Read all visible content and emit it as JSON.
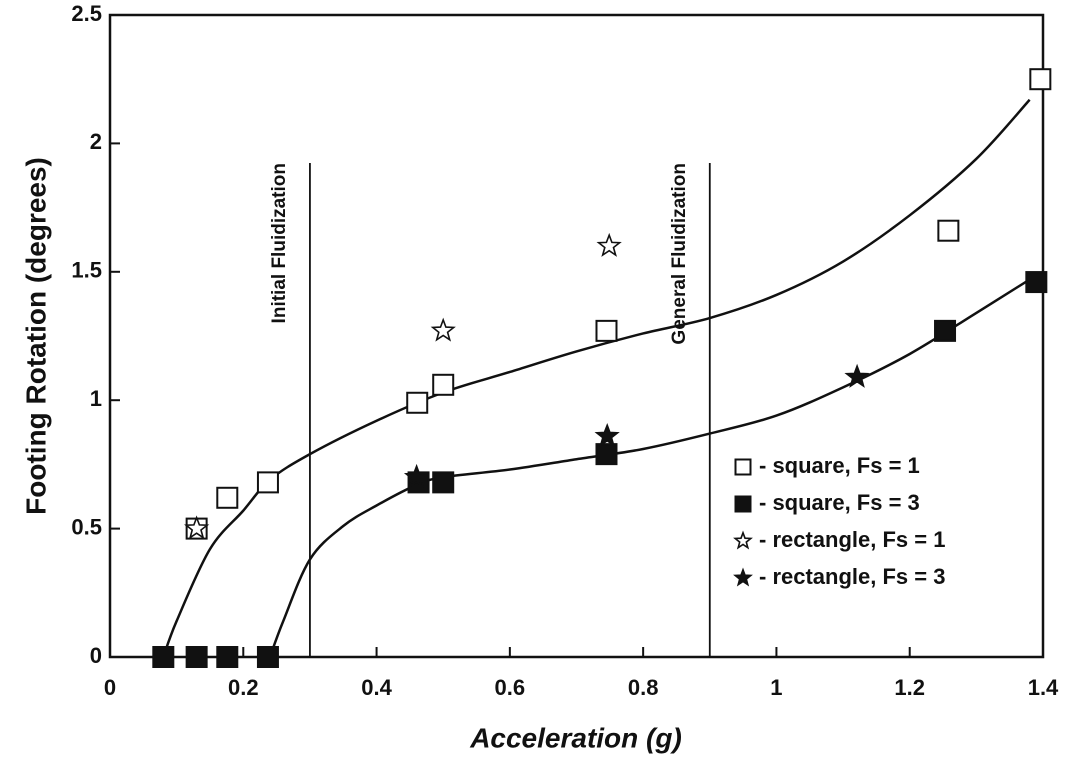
{
  "chart_data": {
    "type": "scatter",
    "x_label": "Acceleration (g)",
    "y_label": "Footing Rotation (degrees)",
    "xlim": [
      0,
      1.4
    ],
    "ylim": [
      0,
      2.5
    ],
    "xticks": [
      0,
      0.2,
      0.4,
      0.6,
      0.8,
      1,
      1.2,
      1.4
    ],
    "yticks": [
      0,
      0.5,
      1,
      1.5,
      2,
      2.5
    ],
    "legend": "lower right",
    "series": [
      {
        "name": "- square, Fs = 1",
        "marker": "square",
        "filled": false,
        "color": "#111111",
        "x": [
          0.13,
          0.176,
          0.237,
          0.461,
          0.5,
          0.745,
          1.258,
          1.396
        ],
        "values": [
          0.5,
          0.62,
          0.68,
          0.99,
          1.06,
          1.27,
          1.66,
          2.25
        ]
      },
      {
        "name": "- square, Fs = 3",
        "marker": "square",
        "filled": true,
        "color": "#111111",
        "x": [
          0.08,
          0.13,
          0.176,
          0.237,
          0.463,
          0.5,
          0.745,
          1.253,
          1.39
        ],
        "values": [
          0,
          0,
          0,
          0,
          0.68,
          0.68,
          0.79,
          1.27,
          1.46
        ]
      },
      {
        "name": "- rectangle, Fs = 1",
        "marker": "star",
        "filled": false,
        "color": "#111111",
        "x": [
          0.13,
          0.5,
          0.749
        ],
        "values": [
          0.5,
          1.27,
          1.6
        ]
      },
      {
        "name": "- rectangle, Fs = 3",
        "marker": "star",
        "filled": true,
        "color": "#111111",
        "x": [
          0.46,
          0.746,
          1.121
        ],
        "values": [
          0.7,
          0.86,
          1.09
        ]
      }
    ],
    "curves": [
      {
        "color": "#111111",
        "x": [
          0.08,
          0.1,
          0.15,
          0.2,
          0.24,
          0.3,
          0.4,
          0.5,
          0.6,
          0.7,
          0.8,
          0.9,
          1.0,
          1.1,
          1.2,
          1.3,
          1.38
        ],
        "values": [
          0,
          0.14,
          0.42,
          0.57,
          0.69,
          0.79,
          0.92,
          1.03,
          1.11,
          1.19,
          1.26,
          1.32,
          1.41,
          1.54,
          1.72,
          1.94,
          2.17
        ]
      },
      {
        "color": "#111111",
        "x": [
          0.24,
          0.26,
          0.3,
          0.35,
          0.4,
          0.46,
          0.5,
          0.6,
          0.7,
          0.8,
          0.9,
          1.0,
          1.1,
          1.2,
          1.3,
          1.38
        ],
        "values": [
          0,
          0.14,
          0.38,
          0.51,
          0.59,
          0.67,
          0.7,
          0.73,
          0.77,
          0.81,
          0.87,
          0.94,
          1.05,
          1.18,
          1.34,
          1.47
        ]
      }
    ],
    "annotations": [
      {
        "text": "Initial Fluidization",
        "x": 0.3
      },
      {
        "text": "General Fluidization",
        "x": 0.9
      }
    ]
  }
}
